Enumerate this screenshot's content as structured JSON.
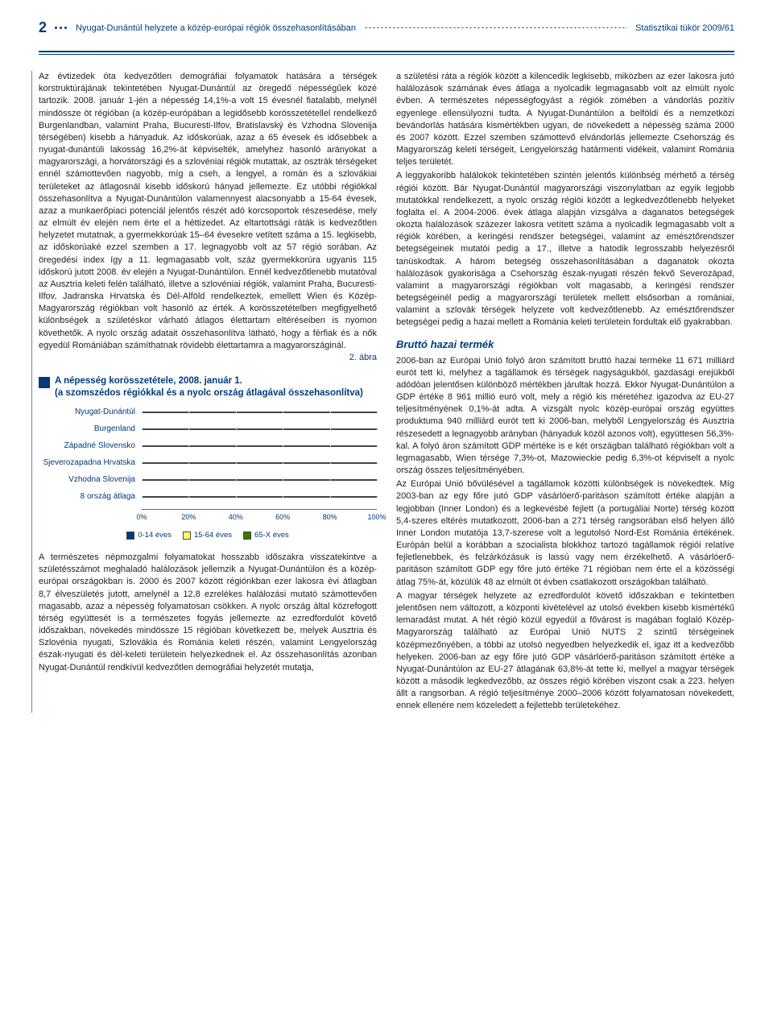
{
  "header": {
    "page_number": "2",
    "title_left": "Nyugat-Dunántúl helyzete a közép-európai régiók összehasonlításában",
    "title_right": "Statisztikai tükör 2009/61"
  },
  "left_column": {
    "para1": "Az évtizedek óta kedvezőtlen demográfiai folyamatok hatására a térségek korstruktúrájának tekintetében Nyugat-Dunántúl az öregedő népességűek közé tartozik. 2008. január 1-jén a népesség 14,1%-a volt 15 évesnél fiatalabb, melynél mindössze öt régióban (a közép-európában a legidősebb korösszetétellel rendelkező Burgenlandban, valamint Praha, Bucuresti-Ilfov, Bratislavský és Vzhodna Slovenija térségében) kisebb a hányaduk. Az időskorúak, azaz a 65 évesek és idősebbek a nyugat-dunántúli lakosság 16,2%-át képviselték, amelyhez hasonló arányokat a magyarországi, a horvátországi és a szlovéniai régiók mutattak, az osztrák térségeket ennél számottevően nagyobb, míg a cseh, a lengyel, a román és a szlovákiai területeket az átlagosnál kisebb időskorú hányad jellemezte. Ez utóbbi régiókkal összehasonlítva a Nyugat-Dunántúlon valamennyest alacsonyabb a 15-64 évesek, azaz a munkaerőpiaci potenciál jelentős részét adó korcsoportok részesedése, mely az elmúlt év elején nem érte el a héttizedet. Az eltartottsági ráták is kedvezőtlen helyzetet mutatnak, a gyermekkorúak 15–64 évesekre vetített száma a 15. legkisebb, az időskorúaké ezzel szemben a 17. legnagyobb volt az 57 régió sorában. Az öregedési index így a 11. legmagasabb volt, száz gyermekkorúra ugyanis 115 időskorú jutott 2008. év elején a Nyugat-Dunántúlon. Ennél kedvezőtlenebb mutatóval az Ausztria keleti felén található, illetve a szlovéniai régiók, valamint Praha, Bucuresti-Ilfov, Jadranska Hrvatska és Dél-Alföld rendelkeztek, emellett Wien és Közép-Magyarország régiókban volt hasonló az érték. A korösszetételben megfigyelhető különbségek a születéskor várható átlagos élettartam eltéréseiben is nyomon követhetők. A nyolc ország adatait összehasonlítva látható, hogy a férfiak és a nők egyedül Romániában számíthatnak rövidebb élettartamra a magyarországinál.",
    "fig_label": "2. ábra",
    "chart_title_l1": "A népesség korösszetétele, 2008. január 1.",
    "chart_title_l2": "(a szomszédos régiókkal és a nyolc ország átlagával összehasonlítva)",
    "para2": "A természetes népmozgalmi folyamatokat hosszabb időszakra visszatekintve a születésszámot meghaladó halálozások jellemzik a Nyugat-Dunántúlon és a közép-európai országokban is. 2000 és 2007 között régiónkban ezer lakosra évi átlagban 8,7 élveszületés jutott, amelynél a 12,8 ezrelékes halálozási mutató számottevően magasabb, azaz a népesség folyamatosan csökken. A nyolc ország által közrefogott térség együttesét is a természetes fogyás jellemezte az ezredfordulót követő időszakban, növekedés mindössze 15 régióban következett be, melyek Ausztria és Szlovénia nyugati, Szlovákia és Románia keleti részén, valamint Lengyelország észak-nyugati és dél-keleti területein helyezkednek el. Az összehasonlítás azonban Nyugat-Dunántúl rendkívül kedvezőtlen demográfiai helyzetét mutatja,"
  },
  "chart": {
    "categories": [
      "Nyugat-Dunántúl",
      "Burgenland",
      "Západné Slovensko",
      "Sjeverozapadna Hrvatska",
      "Vzhodna Slovenija",
      "8 ország átlaga"
    ],
    "series_labels": [
      "0-14 éves",
      "15-64 éves",
      "65-X éves"
    ],
    "series_colors": [
      "#003a7a",
      "#ffff66",
      "#3a7a00"
    ],
    "values": [
      [
        14,
        70,
        16
      ],
      [
        13,
        67,
        20
      ],
      [
        15,
        73,
        12
      ],
      [
        15,
        68,
        17
      ],
      [
        14,
        70,
        16
      ],
      [
        15,
        70,
        15
      ]
    ],
    "ticks": [
      "0%",
      "20%",
      "40%",
      "60%",
      "80%",
      "100%"
    ],
    "tick_positions": [
      0,
      20,
      40,
      60,
      80,
      100
    ]
  },
  "right_column": {
    "para1": "a születési ráta a régiók között a kilencedik legkisebb, miközben az ezer lakosra jutó halálozások számának éves átlaga a nyolcadik legmagasabb volt az elmúlt nyolc évben. A természetes népességfogyást a régiók zömében a vándorlás pozitív egyenlege ellensúlyozni tudta. A Nyugat-Dunántúlon a belföldi és a nemzetközi bevándorlás hatására kismértékben ugyan, de növekedett a népesség száma 2000 és 2007 között. Ezzel szemben számottevő elvándorlás jellemezte Csehország és Magyarország keleti térségeit, Lengyelország határmenti vidékeit, valamint Románia teljes területét.",
    "para2": "A leggyakoribb halálokok tekintetében szintén jelentős különbség mérhető a térség régiói között. Bár Nyugat-Dunántúl magyarországi viszonylatban az egyik legjobb mutatókkal rendelkezett, a nyolc ország régiói között a legkedvezőtlenebb helyeket foglalta el. A 2004-2006. évek átlaga alapján vizsgálva a daganatos betegségek okozta halálozások százezer lakosra vetített száma a nyolcadik legmagasabb volt a régiók körében, a keringési rendszer betegségei, valamint az emésztőrendszer betegségeinek mutatói pedig a 17., illetve a hatodik legrosszabb helyezésről tanúskodtak. A három betegség összehasonlításában a daganatok okozta halálozások gyakorisága a Csehország észak-nyugati részén fekvő Severozápad, valamint a magyarországi régiókban volt magasabb, a keringési rendszer betegségeinél pedig a magyarországi területek mellett elsősorban a romániai, valamint a szlovák térségek helyzete volt kedvezőtlenebb. Az emésztőrendszer betegségei pedig a hazai mellett a Románia keleti területein fordultak elő gyakrabban.",
    "heading": "Bruttó hazai termék",
    "para3": "2006-ban az Európai Unió folyó áron számított bruttó hazai terméke 11 671 milliárd eurót tett ki, melyhez a tagállamok és térségek nagyságukból, gazdasági erejükből adódóan jelentősen különböző mértékben járultak hozzá. Ekkor Nyugat-Dunántúlon a GDP értéke 8 961 millió euró volt, mely a régió kis méretéhez igazodva az EU-27 teljesítményének 0,1%-át adta. A vizsgált nyolc közép-európai ország együttes produktuma 940 milliárd eurót tett ki 2006-ban, melyből Lengyelország és Ausztria részesedett a legnagyobb arányban (hányaduk közöl azonos volt), együttesen 56,3%-kal. A folyó áron számított GDP mértéke is e két országban található régiókban volt a legmagasabb, Wien térsége 7,3%-ot, Mazowieckie pedig 6,3%-ot képviselt a nyolc ország összes teljesítményében.",
    "para4": "Az Európai Unió bővülésével a tagállamok közötti különbségek is növekedtek. Míg 2003-ban az egy főre jutó GDP vásárlóerő-paritáson számított értéke alapján a legjobban (Inner London) és a legkevésbé fejlett (a portugáliai Norte) térség között 5,4-szeres eltérés mutatkozott, 2006-ban a 271 térség rangsorában első helyen álló Inner London mutatója 13,7-szerese volt a legutolsó Nord-Est Románia értékének. Európán belül a korábban a szocialista blokkhoz tartozó tagállamok régiói relatíve fejletlenebbek, és felzárkózásuk is lassú vagy nem érzékelhető. A vásárlóerő-paritáson számított GDP egy főre jutó értéke 71 régióban nem érte el a közösségi átlag 75%-át, közülük 48 az elmúlt öt évben csatlakozott országokban található.",
    "para5": "A magyar térségek helyzete az ezredfordulót követő időszakban e tekintetben jelentősen nem változott, a központi kivételével az utolsó években kisebb kismértékű lemaradást mutat. A hét régió közül egyedül a fővárost is magában foglaló Közép-Magyarország található az Európai Unió NUTS 2 szintű térségeinek középmezőnyében, a többi az utolsó negyedben helyezkedik el, igaz itt a kedvezőbb helyeken. 2006-ban az egy főre jutó GDP vásárlóerő-paritáson számított értéke a Nyugat-Dunántúlon az EU-27 átlagának 63,8%-át tette ki, mellyel a magyar térségek között a második legkedvezőbb, az összes régió körében viszont csak a 223. helyen állt a rangsorban. A régió teljesítménye 2000–2006 között folyamatosan növekedett, ennek ellenére nem közeledett a fejlettebb területekéhez."
  }
}
